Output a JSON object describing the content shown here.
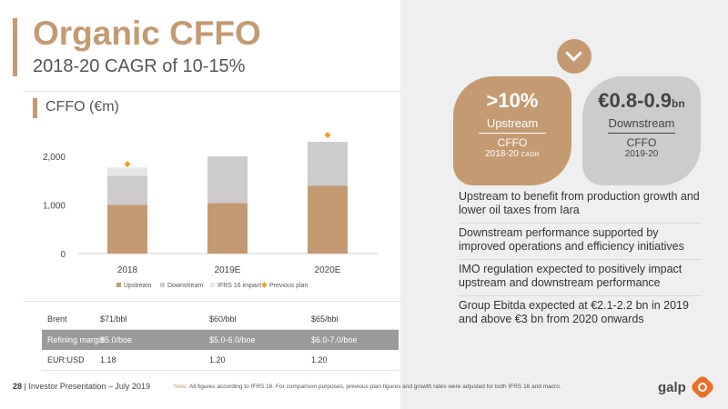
{
  "slide": {
    "title": "Organic CFFO",
    "subtitle": "2018-20 CAGR of 10-15%"
  },
  "chart_data": {
    "type": "bar",
    "stacked": true,
    "title": "CFFO (€m)",
    "categories": [
      "2018",
      "2019E",
      "2020E"
    ],
    "series": [
      {
        "name": "Upstream",
        "values": [
          1000,
          1040,
          1400
        ],
        "color": "#c49a72"
      },
      {
        "name": "Downstream",
        "values": [
          600,
          960,
          900
        ],
        "color": "#cdcbcb"
      },
      {
        "name": "IFRS 16 impact",
        "values": [
          170,
          0,
          0
        ],
        "color": "#e6e5e5"
      }
    ],
    "previous_plan": {
      "name": "Previous plan",
      "values": [
        1840,
        null,
        2440
      ],
      "color": "#f0a020"
    },
    "yticks": [
      0,
      1000,
      2000
    ],
    "ytick_labels": [
      "0",
      "1,000",
      "2,000"
    ],
    "ylim": [
      0,
      2450
    ],
    "grid": false,
    "legend": "bottom"
  },
  "macro": {
    "rows": [
      {
        "label": "Brent",
        "values": [
          "$71/bbl",
          "$60/bbl",
          "$65/bbl"
        ]
      },
      {
        "label": "Refining margin",
        "values": [
          "$5.0/boe",
          "$5.0-6.0/boe",
          "$6.0-7.0/boe"
        ],
        "highlight": true
      },
      {
        "label": "EUR:USD",
        "values": [
          "1.18",
          "1.20",
          "1.20"
        ]
      }
    ]
  },
  "kpis": {
    "upstream": {
      "value": ">10%",
      "label": "Upstream",
      "metric": "CFFO",
      "period": "2018-20",
      "period_suffix": "CAGR"
    },
    "downstream": {
      "value": "€0.8-0.9",
      "value_suffix": "bn",
      "label": "Downstream",
      "metric": "CFFO",
      "period": "2019-20"
    }
  },
  "bullets": [
    "Upstream to benefit from production growth and lower oil taxes from Iara",
    "Downstream performance supported by improved operations and efficiency initiatives",
    "IMO regulation expected to positively impact upstream and downstream performance",
    "Group Ebitda expected at €2.1-2.2 bn in 2019 and above €3 bn from 2020 onwards"
  ],
  "footer": {
    "page": "28",
    "presentation": "| Investor Presentation – July 2019",
    "note_label": "Note:",
    "note": "All figures according to IFRS 16. For comparison purposes, previous plan figures and growth rates were adjusted for both IFRS 16 and macro."
  },
  "logo": {
    "text": "galp"
  },
  "icons": {
    "chevron": "chevron-down-icon",
    "logo": "galp-logo-icon"
  }
}
